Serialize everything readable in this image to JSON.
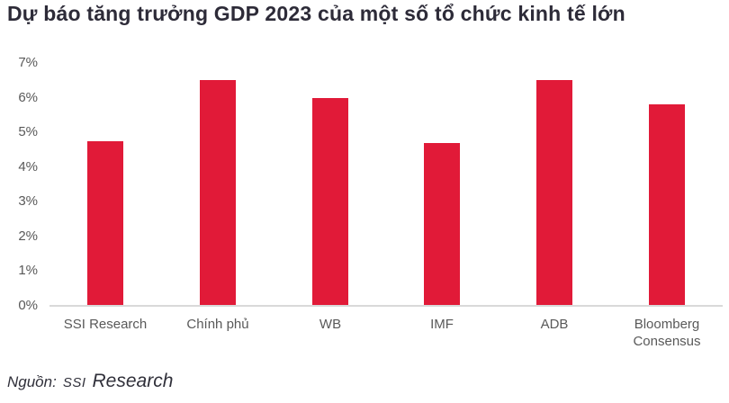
{
  "title": "Dự báo tăng trưởng GDP 2023 của một số tổ chức kinh tế lớn",
  "chart_data": {
    "type": "bar",
    "title": "Dự báo tăng trưởng GDP 2023 của một số tổ chức kinh tế lớn",
    "categories": [
      "SSI Research",
      "Chính phủ",
      "WB",
      "IMF",
      "ADB",
      "Bloomberg Consensus"
    ],
    "values": [
      4.75,
      6.5,
      6.0,
      4.7,
      6.5,
      5.8
    ],
    "unit": "%",
    "xlabel": "",
    "ylabel": "",
    "ylim": [
      0,
      7
    ],
    "y_tick_labels": [
      "0%",
      "1%",
      "2%",
      "3%",
      "4%",
      "5%",
      "6%",
      "7%"
    ],
    "grid": false,
    "legend": false,
    "colors": {
      "bar": "#e11a38",
      "axis_text": "#595959",
      "baseline": "#d9d9d9",
      "title_text": "#2d2b38"
    }
  },
  "footer": {
    "prefix": "Nguồn:",
    "source_ssi": "SSI",
    "source_research": "Research"
  }
}
